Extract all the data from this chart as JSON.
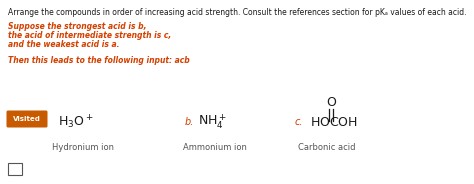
{
  "title_line": "Arrange the compounds in order of increasing acid strength. Consult the references section for pKₐ values of each acid.",
  "line1": "Suppose the strongest acid is b,",
  "line2": "the acid of intermediate strength is c,",
  "line3": "and the weakest acid is a.",
  "input_line": "Then this leads to the following input: acb",
  "text_color_orange": "#d44000",
  "text_color_black": "#1a1a1a",
  "text_color_gray": "#555555",
  "visited_label": "Visited",
  "visited_bg": "#c85a00",
  "item_a_name": "Hydronium ion",
  "item_b_label": "b.",
  "item_b_name": "Ammonium ion",
  "item_c_label": "c.",
  "item_c_name": "Carbonic acid",
  "background_color": "#ffffff"
}
